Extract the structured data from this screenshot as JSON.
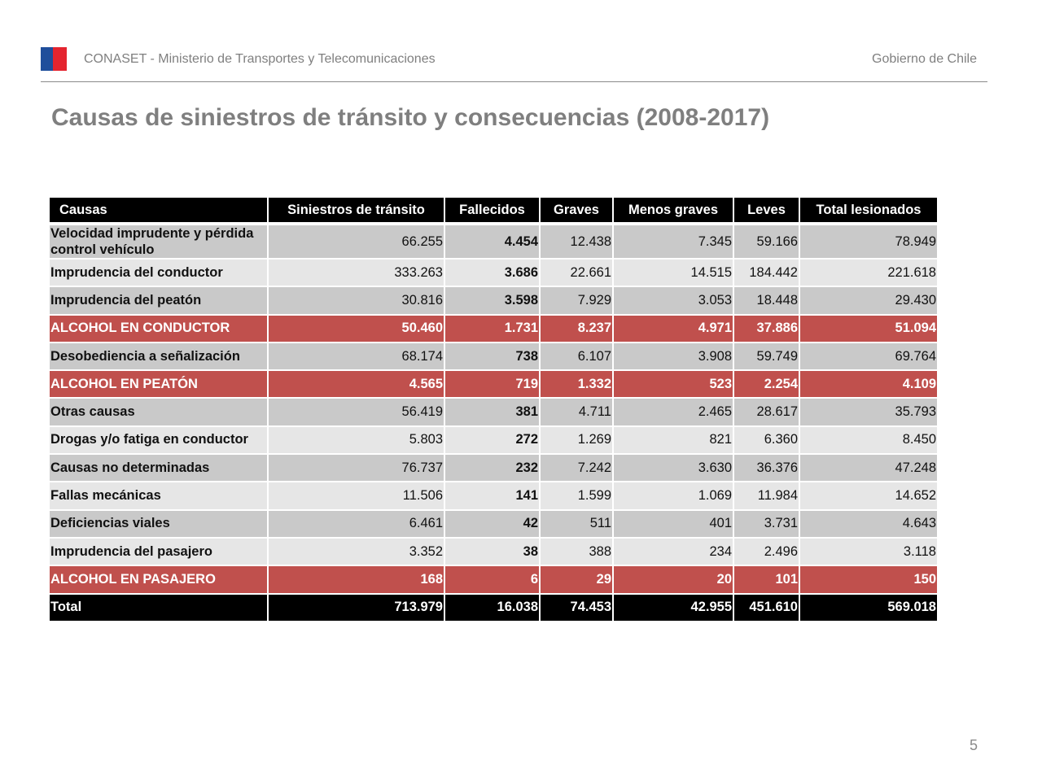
{
  "header": {
    "organization": "CONASET - Ministerio de Transportes y Telecomunicaciones",
    "government": "Gobierno de Chile",
    "brand_colors": {
      "blue": "#1f4e9b",
      "red": "#e4242f"
    }
  },
  "title": "Causas de siniestros de tránsito y consecuencias (2008-2017)",
  "table": {
    "columns": [
      "Causas",
      "Siniestros de tránsito",
      "Fallecidos",
      "Graves",
      "Menos graves",
      "Leves",
      "Total lesionados"
    ],
    "rows": [
      {
        "style": "dark",
        "cells": [
          "Velocidad imprudente y pérdida control vehículo",
          "66.255",
          "4.454",
          "12.438",
          "7.345",
          "59.166",
          "78.949"
        ]
      },
      {
        "style": "light",
        "cells": [
          "Imprudencia del conductor",
          "333.263",
          "3.686",
          "22.661",
          "14.515",
          "184.442",
          "221.618"
        ]
      },
      {
        "style": "dark",
        "cells": [
          "Imprudencia del peatón",
          "30.816",
          "3.598",
          "7.929",
          "3.053",
          "18.448",
          "29.430"
        ]
      },
      {
        "style": "red",
        "cells": [
          "ALCOHOL EN CONDUCTOR",
          "50.460",
          "1.731",
          "8.237",
          "4.971",
          "37.886",
          "51.094"
        ]
      },
      {
        "style": "dark",
        "cells": [
          "Desobediencia a señalización",
          "68.174",
          "738",
          "6.107",
          "3.908",
          "59.749",
          "69.764"
        ]
      },
      {
        "style": "red",
        "cells": [
          "ALCOHOL EN PEATÓN",
          "4.565",
          "719",
          "1.332",
          "523",
          "2.254",
          "4.109"
        ]
      },
      {
        "style": "dark",
        "cells": [
          "Otras causas",
          "56.419",
          "381",
          "4.711",
          "2.465",
          "28.617",
          "35.793"
        ]
      },
      {
        "style": "light",
        "cells": [
          "Drogas y/o fatiga en conductor",
          "5.803",
          "272",
          "1.269",
          "821",
          "6.360",
          "8.450"
        ]
      },
      {
        "style": "dark",
        "cells": [
          "Causas no determinadas",
          "76.737",
          "232",
          "7.242",
          "3.630",
          "36.376",
          "47.248"
        ]
      },
      {
        "style": "light",
        "cells": [
          "Fallas mecánicas",
          "11.506",
          "141",
          "1.599",
          "1.069",
          "11.984",
          "14.652"
        ]
      },
      {
        "style": "dark",
        "cells": [
          "Deficiencias viales",
          "6.461",
          "42",
          "511",
          "401",
          "3.731",
          "4.643"
        ]
      },
      {
        "style": "light",
        "cells": [
          "Imprudencia del pasajero",
          "3.352",
          "38",
          "388",
          "234",
          "2.496",
          "3.118"
        ]
      },
      {
        "style": "red",
        "cells": [
          "ALCOHOL EN PASAJERO",
          "168",
          "6",
          "29",
          "20",
          "101",
          "150"
        ]
      },
      {
        "style": "total",
        "cells": [
          "Total",
          "713.979",
          "16.038",
          "74.453",
          "42.955",
          "451.610",
          "569.018"
        ]
      }
    ],
    "colors": {
      "highlight_red": "#c0504d",
      "row_dark": "#c9c9c9",
      "row_light": "#e6e6e6",
      "header": "#000000"
    }
  },
  "page_number": "5"
}
